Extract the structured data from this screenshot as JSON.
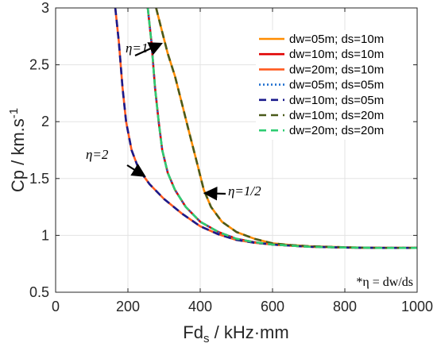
{
  "chart_data": {
    "type": "line",
    "xlabel": {
      "main": "Fd",
      "sub": "s",
      "rest": " / kHz·mm"
    },
    "ylabel": {
      "main": "Cp / km.s",
      "sup": "-1"
    },
    "xlim": [
      0,
      1000
    ],
    "ylim": [
      0.5,
      3
    ],
    "xticks": [
      0,
      200,
      400,
      600,
      800,
      1000
    ],
    "xtick_labels": [
      "0",
      "200",
      "400",
      "600",
      "800",
      "1000"
    ],
    "yticks": [
      0.5,
      1,
      1.5,
      2,
      2.5,
      3
    ],
    "ytick_labels": [
      "0.5",
      "1",
      "1.5",
      "2",
      "2.5",
      "3"
    ],
    "grid": true,
    "legend_position": "top-right",
    "series": [
      {
        "name": "dw=05m; ds=10m",
        "color": "#FF8C00",
        "style": "solid",
        "curve": "eta_half",
        "x": [
          278,
          290,
          310,
          330,
          350,
          370,
          390,
          410,
          430,
          460,
          500,
          550,
          600,
          650,
          700,
          800,
          900,
          1000
        ],
        "y": [
          3.0,
          2.85,
          2.6,
          2.4,
          2.15,
          1.9,
          1.65,
          1.4,
          1.25,
          1.12,
          1.03,
          0.97,
          0.93,
          0.915,
          0.905,
          0.895,
          0.89,
          0.89
        ]
      },
      {
        "name": "dw=10m; ds=10m",
        "color": "#E00000",
        "style": "solid",
        "curve": "eta_1",
        "x": [
          255,
          265,
          275,
          285,
          295,
          310,
          330,
          360,
          400,
          450,
          500,
          550,
          600,
          700,
          800,
          900,
          1000
        ],
        "y": [
          3.0,
          2.7,
          2.3,
          2.0,
          1.75,
          1.55,
          1.4,
          1.25,
          1.12,
          1.03,
          0.97,
          0.94,
          0.92,
          0.9,
          0.893,
          0.89,
          0.89
        ]
      },
      {
        "name": "dw=20m; ds=10m",
        "color": "#FF5A1F",
        "style": "solid",
        "curve": "eta_2",
        "x": [
          165,
          175,
          185,
          195,
          210,
          230,
          260,
          300,
          350,
          400,
          450,
          500,
          550,
          600,
          700,
          800,
          900,
          1000
        ],
        "y": [
          3.0,
          2.7,
          2.3,
          2.0,
          1.75,
          1.58,
          1.45,
          1.32,
          1.19,
          1.08,
          1.01,
          0.96,
          0.935,
          0.92,
          0.9,
          0.893,
          0.89,
          0.89
        ]
      },
      {
        "name": "dw=05m; ds=05m",
        "color": "#1F6FCF",
        "style": "dotted",
        "curve": "eta_1",
        "x": [
          255,
          265,
          275,
          285,
          295,
          310,
          330,
          360,
          400,
          450,
          500,
          550,
          600,
          700,
          800,
          900,
          1000
        ],
        "y": [
          3.0,
          2.7,
          2.3,
          2.0,
          1.75,
          1.55,
          1.4,
          1.25,
          1.12,
          1.03,
          0.97,
          0.94,
          0.92,
          0.9,
          0.893,
          0.89,
          0.89
        ]
      },
      {
        "name": "dw=10m; ds=05m",
        "color": "#1A1A8C",
        "style": "dashed",
        "curve": "eta_2",
        "x": [
          165,
          175,
          185,
          195,
          210,
          230,
          260,
          300,
          350,
          400,
          450,
          500,
          550,
          600,
          700,
          800,
          900,
          1000
        ],
        "y": [
          3.0,
          2.7,
          2.3,
          2.0,
          1.75,
          1.58,
          1.45,
          1.32,
          1.19,
          1.08,
          1.01,
          0.96,
          0.935,
          0.92,
          0.9,
          0.893,
          0.89,
          0.89
        ]
      },
      {
        "name": "dw=10m; ds=20m",
        "color": "#4A5A1A",
        "style": "dashed",
        "curve": "eta_half",
        "x": [
          278,
          290,
          310,
          330,
          350,
          370,
          390,
          410,
          430,
          460,
          500,
          550,
          600,
          650,
          700,
          800,
          900,
          1000
        ],
        "y": [
          3.0,
          2.85,
          2.6,
          2.4,
          2.15,
          1.9,
          1.65,
          1.4,
          1.25,
          1.12,
          1.03,
          0.97,
          0.93,
          0.915,
          0.905,
          0.895,
          0.89,
          0.89
        ]
      },
      {
        "name": "dw=20m; ds=20m",
        "color": "#2ECC71",
        "style": "dashed",
        "curve": "eta_1",
        "x": [
          255,
          265,
          275,
          285,
          295,
          310,
          330,
          360,
          400,
          450,
          500,
          550,
          600,
          700,
          800,
          900,
          1000
        ],
        "y": [
          3.0,
          2.7,
          2.3,
          2.0,
          1.75,
          1.55,
          1.4,
          1.25,
          1.12,
          1.03,
          0.97,
          0.94,
          0.92,
          0.9,
          0.893,
          0.89,
          0.89
        ]
      }
    ],
    "annotations": [
      {
        "id": "eta1",
        "text": "η=1",
        "arrow_to": [
          288,
          2.68
        ]
      },
      {
        "id": "eta2",
        "text": "η=2",
        "arrow_to": [
          242,
          1.53
        ]
      },
      {
        "id": "etahalf",
        "text": "η=1/2",
        "arrow_to": [
          418,
          1.37
        ]
      }
    ],
    "footnote": "*η = dw/ds"
  }
}
